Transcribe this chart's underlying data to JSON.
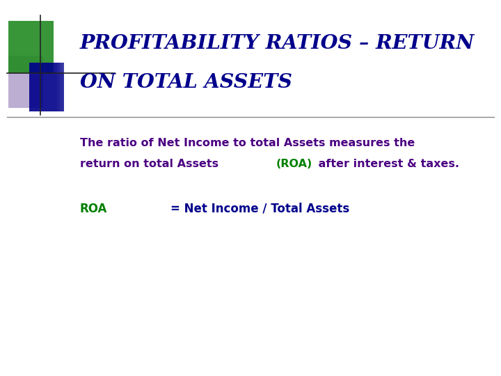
{
  "title_line1": "PROFITABILITY RATIOS – RETURN",
  "title_line2": "ON TOTAL ASSETS",
  "title_color": "#00008B",
  "body_color": "#4B0082",
  "roa_highlight_color": "#008000",
  "roa_label": "ROA",
  "roa_formula": "= Net Income / Total Assets",
  "formula_color": "#00008B",
  "background_color": "#FFFFFF",
  "decor_green": "#228B22",
  "decor_blue": "#00008B",
  "decor_purple": "#7B5EA7",
  "separator_color": "#888888"
}
